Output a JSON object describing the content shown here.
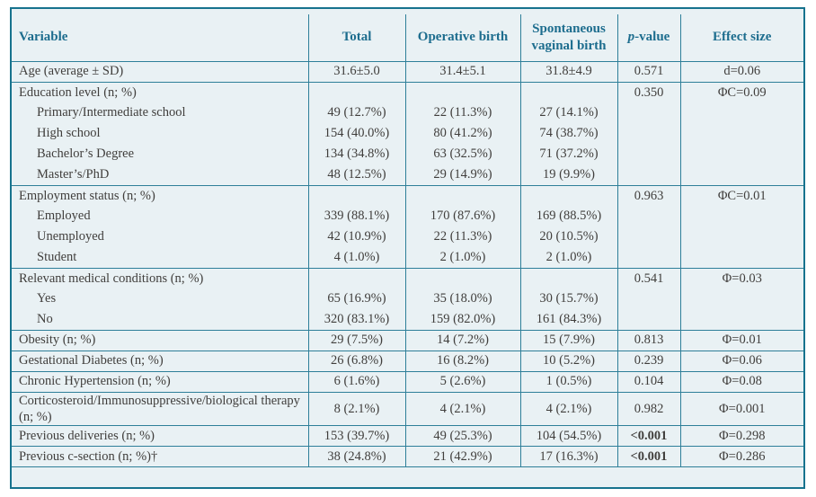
{
  "colors": {
    "accent": "#1d6d8e",
    "line": "#2e7f99",
    "outer_border": "#17738e",
    "table_background": "#e9f1f4",
    "body_text": "#403e3c"
  },
  "table": {
    "headers": {
      "variable": "Variable",
      "total": "Total",
      "operative": "Operative birth",
      "spontaneous": "Spontaneous vaginal birth",
      "pvalue_italic": "p",
      "pvalue_rest": "-value",
      "effect": "Effect size"
    },
    "rows": [
      {
        "variable": "Age (average ± SD)",
        "indent": false,
        "rule": false,
        "total": "31.6±5.0",
        "operative": "31.4±5.1",
        "spontaneous": "31.8±4.9",
        "p": "0.571",
        "p_bold": false,
        "effect": "d=0.06"
      },
      {
        "variable": "Education level (n; %)",
        "indent": false,
        "rule": true,
        "total": "",
        "operative": "",
        "spontaneous": "",
        "p": "0.350",
        "p_bold": false,
        "effect": "ΦC=0.09"
      },
      {
        "variable": "Primary/Intermediate school",
        "indent": true,
        "rule": false,
        "total": "49 (12.7%)",
        "operative": "22 (11.3%)",
        "spontaneous": "27 (14.1%)",
        "p": "",
        "p_bold": false,
        "effect": ""
      },
      {
        "variable": "High school",
        "indent": true,
        "rule": false,
        "total": "154 (40.0%)",
        "operative": "80 (41.2%)",
        "spontaneous": "74 (38.7%)",
        "p": "",
        "p_bold": false,
        "effect": ""
      },
      {
        "variable": "Bachelor’s Degree",
        "indent": true,
        "rule": false,
        "total": "134 (34.8%)",
        "operative": "63 (32.5%)",
        "spontaneous": "71 (37.2%)",
        "p": "",
        "p_bold": false,
        "effect": ""
      },
      {
        "variable": "Master’s/PhD",
        "indent": true,
        "rule": false,
        "total": "48 (12.5%)",
        "operative": "29 (14.9%)",
        "spontaneous": "19 (9.9%)",
        "p": "",
        "p_bold": false,
        "effect": ""
      },
      {
        "variable": "Employment status (n; %)",
        "indent": false,
        "rule": true,
        "total": "",
        "operative": "",
        "spontaneous": "",
        "p": "0.963",
        "p_bold": false,
        "effect": "ΦC=0.01"
      },
      {
        "variable": "Employed",
        "indent": true,
        "rule": false,
        "total": "339 (88.1%)",
        "operative": "170 (87.6%)",
        "spontaneous": "169 (88.5%)",
        "p": "",
        "p_bold": false,
        "effect": ""
      },
      {
        "variable": "Unemployed",
        "indent": true,
        "rule": false,
        "total": "42 (10.9%)",
        "operative": "22 (11.3%)",
        "spontaneous": "20 (10.5%)",
        "p": "",
        "p_bold": false,
        "effect": ""
      },
      {
        "variable": "Student",
        "indent": true,
        "rule": false,
        "total": "4 (1.0%)",
        "operative": "2 (1.0%)",
        "spontaneous": "2 (1.0%)",
        "p": "",
        "p_bold": false,
        "effect": ""
      },
      {
        "variable": "Relevant medical conditions (n; %)",
        "indent": false,
        "rule": true,
        "total": "",
        "operative": "",
        "spontaneous": "",
        "p": "0.541",
        "p_bold": false,
        "effect": "Φ=0.03"
      },
      {
        "variable": "Yes",
        "indent": true,
        "rule": false,
        "total": "65 (16.9%)",
        "operative": "35 (18.0%)",
        "spontaneous": "30 (15.7%)",
        "p": "",
        "p_bold": false,
        "effect": ""
      },
      {
        "variable": "No",
        "indent": true,
        "rule": false,
        "total": "320 (83.1%)",
        "operative": "159 (82.0%)",
        "spontaneous": "161 (84.3%)",
        "p": "",
        "p_bold": false,
        "effect": ""
      },
      {
        "variable": "Obesity (n; %)",
        "indent": false,
        "rule": true,
        "total": "29 (7.5%)",
        "operative": "14 (7.2%)",
        "spontaneous": "15 (7.9%)",
        "p": "0.813",
        "p_bold": false,
        "effect": "Φ=0.01"
      },
      {
        "variable": "Gestational Diabetes (n; %)",
        "indent": false,
        "rule": true,
        "total": "26 (6.8%)",
        "operative": "16 (8.2%)",
        "spontaneous": "10 (5.2%)",
        "p": "0.239",
        "p_bold": false,
        "effect": "Φ=0.06"
      },
      {
        "variable": "Chronic Hypertension (n; %)",
        "indent": false,
        "rule": true,
        "total": "6 (1.6%)",
        "operative": "5 (2.6%)",
        "spontaneous": "1 (0.5%)",
        "p": "0.104",
        "p_bold": false,
        "effect": "Φ=0.08"
      },
      {
        "variable": "Corticosteroid/Immunosuppressive/biological therapy (n; %)",
        "indent": false,
        "rule": true,
        "total": "8 (2.1%)",
        "operative": "4 (2.1%)",
        "spontaneous": "4 (2.1%)",
        "p": "0.982",
        "p_bold": false,
        "effect": "Φ=0.001"
      },
      {
        "variable": "Previous deliveries (n; %)",
        "indent": false,
        "rule": true,
        "total": "153 (39.7%)",
        "operative": "49 (25.3%)",
        "spontaneous": "104 (54.5%)",
        "p": "<0.001",
        "p_bold": true,
        "effect": "Φ=0.298"
      },
      {
        "variable": "Previous c-section (n; %)†",
        "indent": false,
        "rule": true,
        "total": "38 (24.8%)",
        "operative": "21 (42.9%)",
        "spontaneous": "17 (16.3%)",
        "p": "<0.001",
        "p_bold": true,
        "effect": "Φ=0.286"
      }
    ]
  }
}
